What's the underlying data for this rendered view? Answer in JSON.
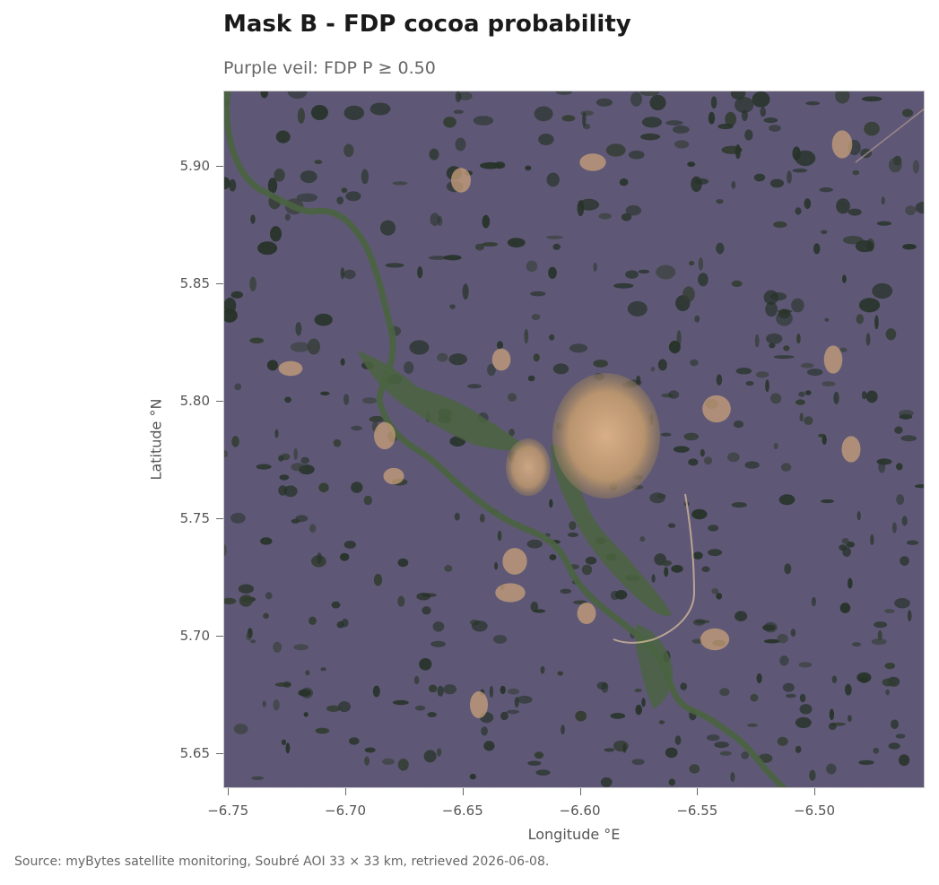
{
  "title": "Mask B - FDP cocoa probability",
  "subtitle": "Purple veil: FDP P ≥ 0.50",
  "map": {
    "xlabel": "Longitude °E",
    "ylabel": "Latitude °N",
    "xlim": [
      -6.752,
      -6.453
    ],
    "ylim": [
      5.635,
      5.932
    ],
    "xticks": [
      {
        "value": -6.75,
        "label": "−6.75"
      },
      {
        "value": -6.7,
        "label": "−6.70"
      },
      {
        "value": -6.65,
        "label": "−6.65"
      },
      {
        "value": -6.6,
        "label": "−6.60"
      },
      {
        "value": -6.55,
        "label": "−6.55"
      },
      {
        "value": -6.5,
        "label": "−6.50"
      }
    ],
    "yticks": [
      {
        "value": 5.9,
        "label": "5.90"
      },
      {
        "value": 5.85,
        "label": "5.85"
      },
      {
        "value": 5.8,
        "label": "5.80"
      },
      {
        "value": 5.75,
        "label": "5.75"
      },
      {
        "value": 5.7,
        "label": "5.70"
      },
      {
        "value": 5.65,
        "label": "5.65"
      }
    ],
    "colors": {
      "veil": "#5f5878",
      "forest": "#1c2a1a",
      "river": "#4a6440",
      "settlement": "#c9a07a"
    }
  },
  "source": "Source: myBytes satellite monitoring, Soubré AOI 33 × 33 km, retrieved 2026-06-08."
}
